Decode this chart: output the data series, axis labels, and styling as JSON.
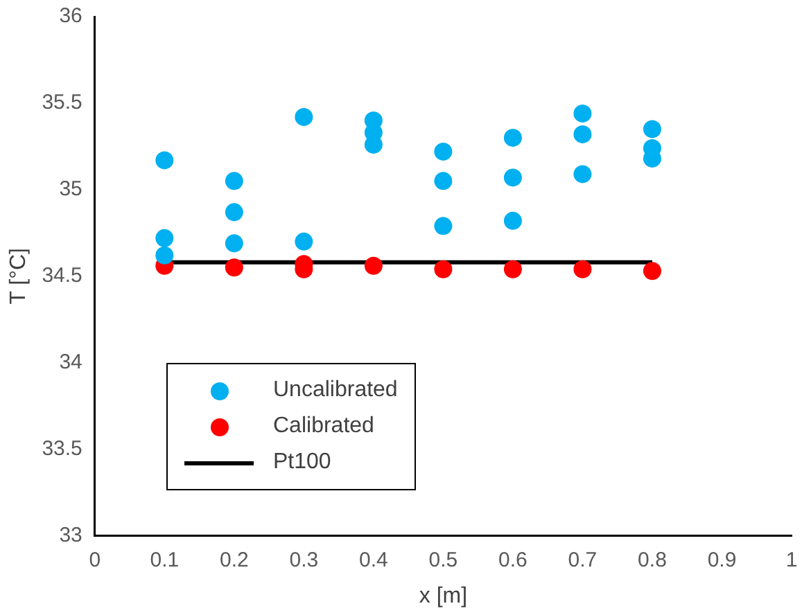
{
  "chart_data": {
    "type": "scatter",
    "xlabel": "x [m]",
    "ylabel": "T [°C]",
    "xlim": [
      0,
      1
    ],
    "xticks": [
      0,
      0.1,
      0.2,
      0.3,
      0.4,
      0.5,
      0.6,
      0.7,
      0.8,
      0.9,
      1
    ],
    "ylim": [
      33,
      36
    ],
    "yticks": [
      33,
      33.5,
      34,
      34.5,
      35,
      35.5,
      36
    ],
    "grid": false,
    "legend": "bottom left",
    "series": [
      {
        "name": "Uncalibrated",
        "color": "#00b0f0",
        "marker": "circle",
        "x": [
          0.1,
          0.1,
          0.1,
          0.2,
          0.2,
          0.2,
          0.3,
          0.3,
          0.4,
          0.4,
          0.4,
          0.5,
          0.5,
          0.5,
          0.6,
          0.6,
          0.6,
          0.7,
          0.7,
          0.7,
          0.8,
          0.8,
          0.8
        ],
        "values": [
          35.17,
          34.72,
          34.62,
          35.05,
          34.87,
          34.69,
          35.42,
          34.7,
          35.4,
          35.33,
          35.26,
          35.22,
          35.05,
          34.79,
          35.3,
          35.07,
          34.82,
          35.44,
          35.32,
          35.09,
          35.35,
          35.24,
          35.18
        ]
      },
      {
        "name": "Calibrated",
        "color": "#ff0000",
        "marker": "circle",
        "x": [
          0.1,
          0.2,
          0.3,
          0.3,
          0.4,
          0.5,
          0.6,
          0.7,
          0.8
        ],
        "values": [
          34.56,
          34.55,
          34.57,
          34.54,
          34.56,
          34.54,
          34.54,
          34.54,
          34.53
        ]
      },
      {
        "name": "Pt100",
        "color": "#000000",
        "type": "line",
        "x": [
          0.1,
          0.8
        ],
        "values": [
          34.58,
          34.58
        ],
        "line_style": "solid",
        "marker": "none"
      }
    ]
  }
}
